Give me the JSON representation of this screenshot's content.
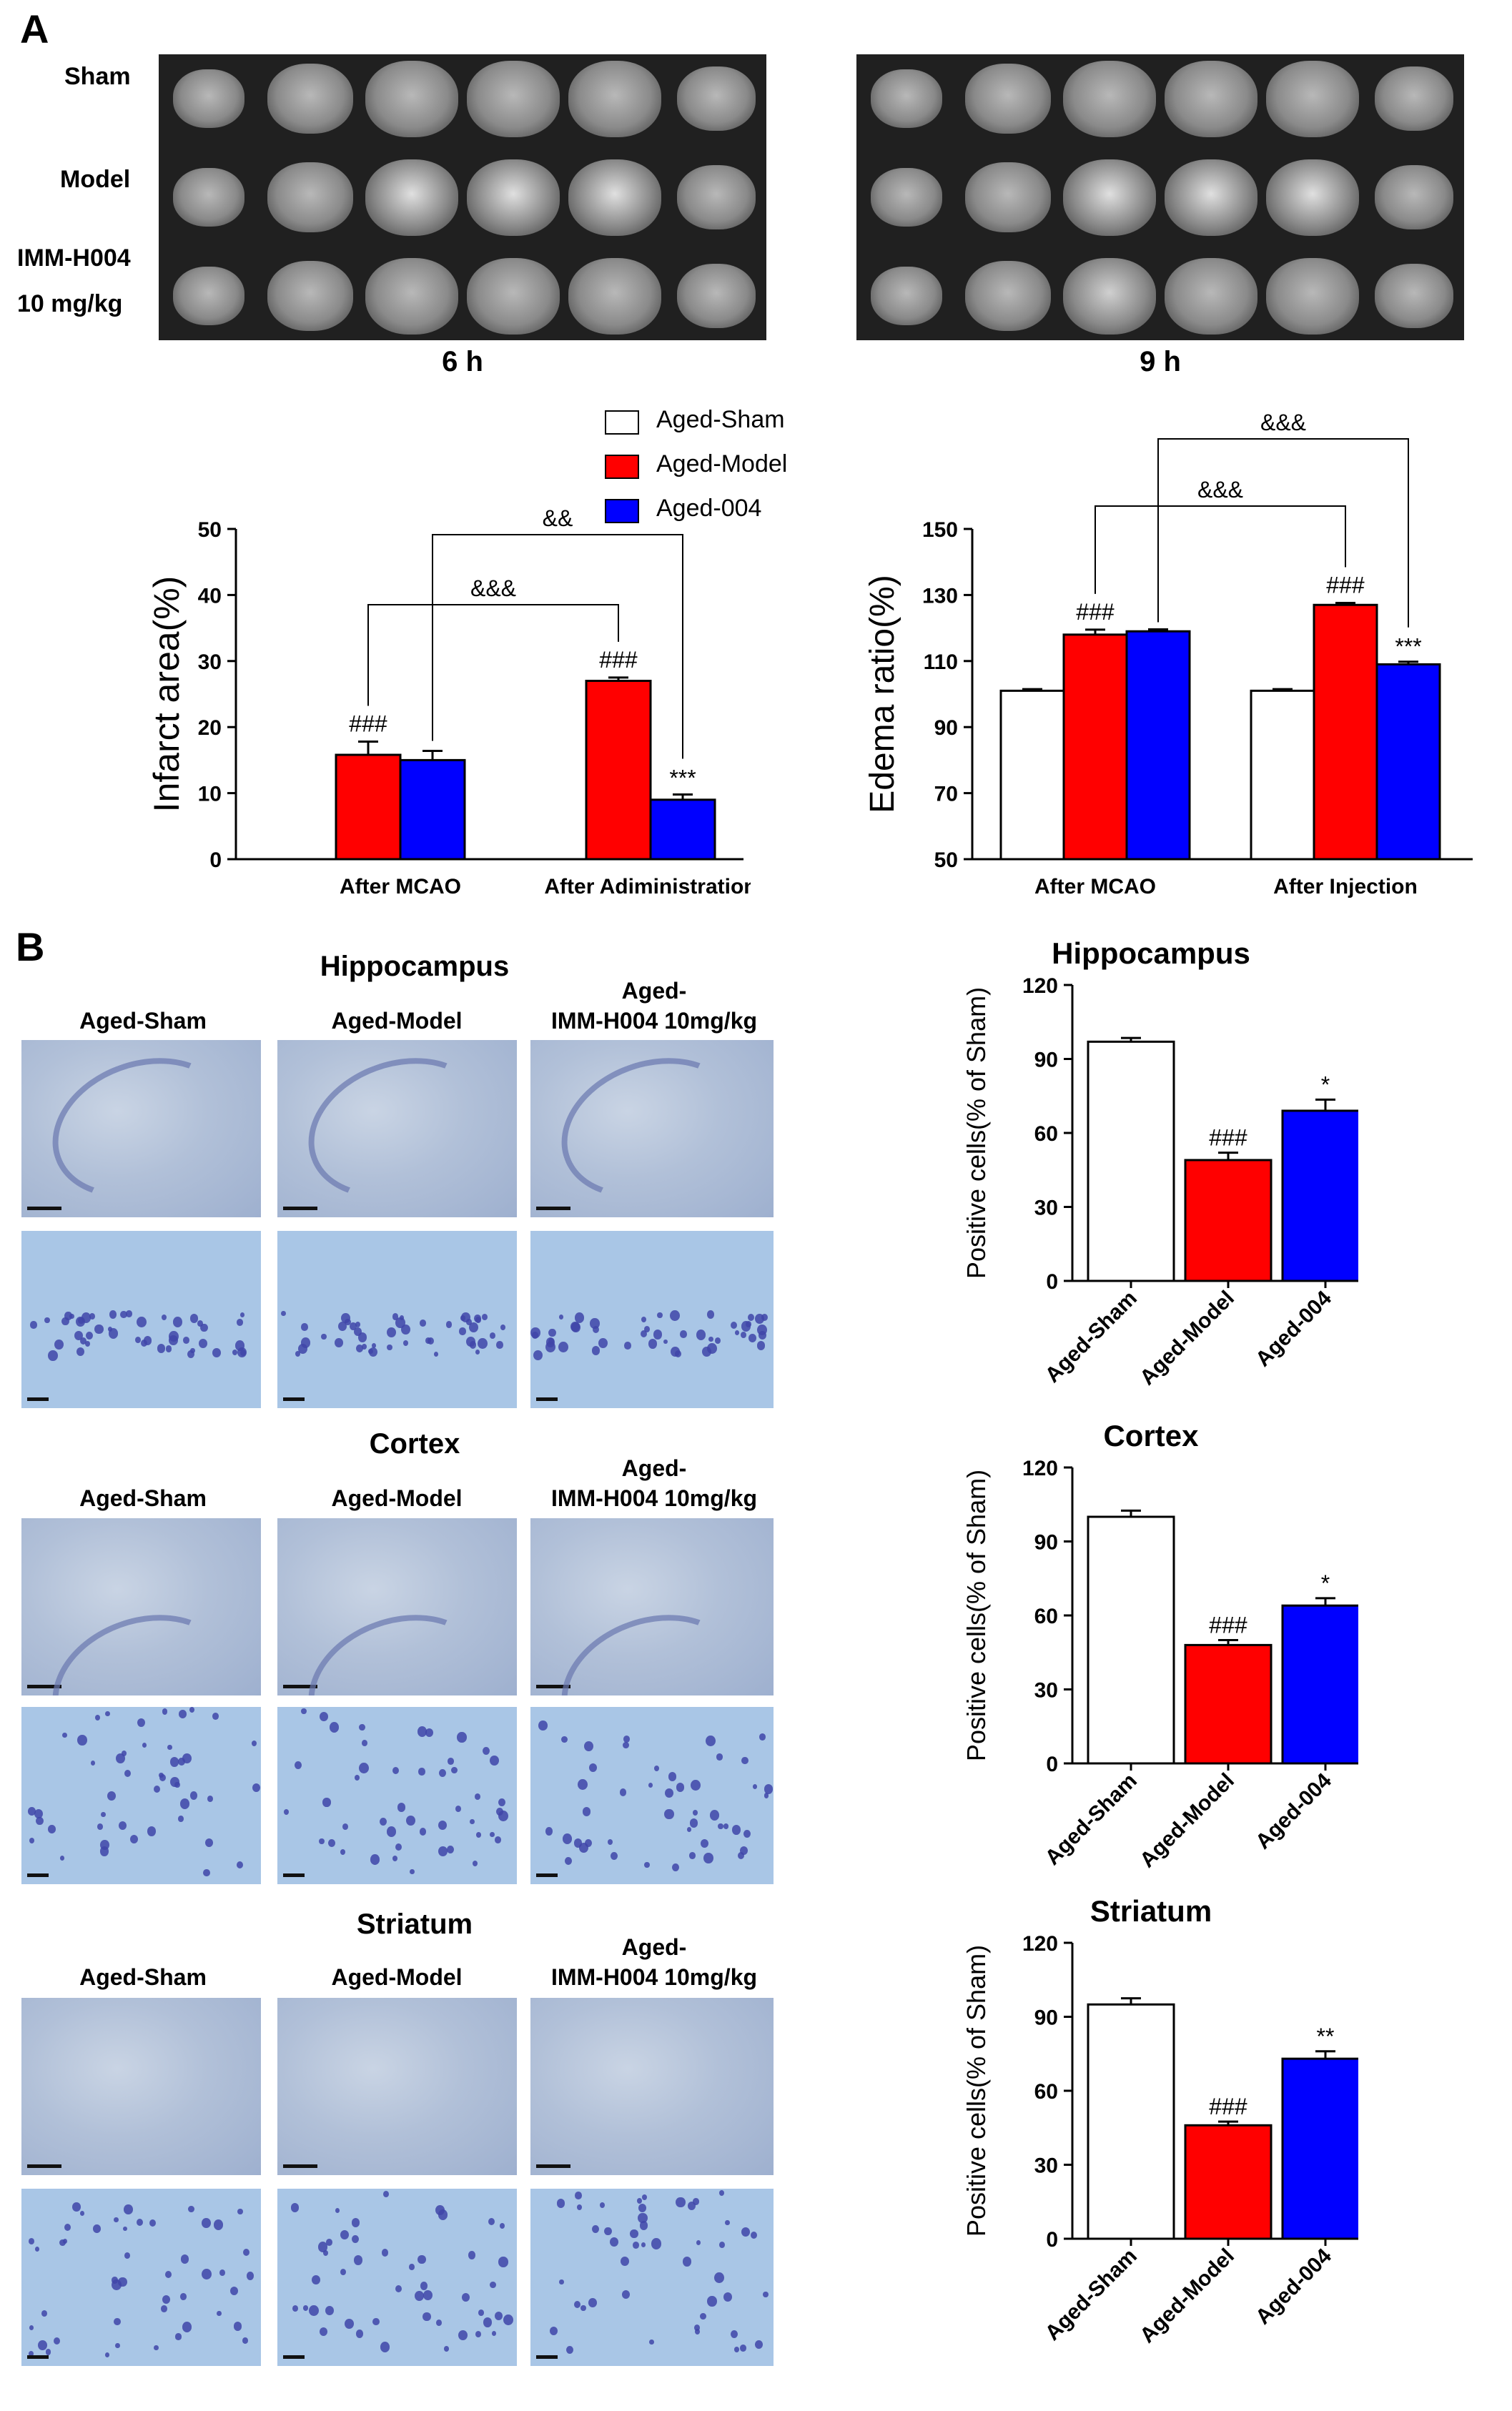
{
  "panel_a": {
    "letter": "A",
    "mri_rows": [
      "Sham",
      "Model",
      "IMM-H004",
      "10 mg/kg"
    ],
    "mri_time_left": "6 h",
    "mri_time_right": "9 h"
  },
  "legend": {
    "entries": [
      {
        "name": "Aged-Sham",
        "color": "#ffffff"
      },
      {
        "name": "Aged-Model",
        "color": "#ff0000"
      },
      {
        "name": "Aged-004",
        "color": "#0000ff"
      }
    ]
  },
  "panel_b": {
    "letter": "B",
    "regions": [
      {
        "title": "Hippocampus",
        "col_labels": [
          "Aged-Sham",
          "Aged-Model",
          "Aged-",
          "IMM-H004 10mg/kg"
        ]
      },
      {
        "title": "Cortex",
        "col_labels": [
          "Aged-Sham",
          "Aged-Model",
          "Aged-",
          "IMM-H004 10mg/kg"
        ]
      },
      {
        "title": "Striatum",
        "col_labels": [
          "Aged-Sham",
          "Aged-Model",
          "Aged-",
          "IMM-H004 10mg/kg"
        ]
      }
    ]
  },
  "chart_data": [
    {
      "type": "bar",
      "ylabel": "Infarct area(%)",
      "categories": [
        "After MCAO",
        "After Adiministration"
      ],
      "series": [
        {
          "name": "Aged-Model",
          "values": [
            15.8,
            27.0
          ],
          "errors": [
            2.0,
            0.5
          ]
        },
        {
          "name": "Aged-004",
          "values": [
            15.0,
            9.0
          ],
          "errors": [
            1.4,
            0.8
          ]
        }
      ],
      "ylim": [
        0,
        50
      ],
      "yticks": [
        "0",
        "10",
        "20",
        "30",
        "40",
        "50"
      ],
      "marks": [
        "###",
        "###",
        "***"
      ],
      "brackets": [
        "&&&",
        "&&"
      ]
    },
    {
      "type": "bar",
      "ylabel": "Edema ratio(%)",
      "categories": [
        "After MCAO",
        "After Injection"
      ],
      "series": [
        {
          "name": "Aged-Sham",
          "values": [
            101,
            101
          ],
          "errors": [
            0.5,
            0.5
          ]
        },
        {
          "name": "Aged-Model",
          "values": [
            118,
            127
          ],
          "errors": [
            1.5,
            0.6
          ]
        },
        {
          "name": "Aged-004",
          "values": [
            119,
            109
          ],
          "errors": [
            0.6,
            0.8
          ]
        }
      ],
      "ylim": [
        50,
        150
      ],
      "yticks": [
        "50",
        "70",
        "90",
        "110",
        "130",
        "150"
      ],
      "marks": [
        "###",
        "###",
        "***"
      ],
      "brackets": [
        "&&&",
        "&&&"
      ]
    },
    {
      "type": "bar",
      "title": "Hippocampus",
      "ylabel": "Positive cells(% of Sham)",
      "categories": [
        "Aged-Sham",
        "Aged-Model",
        "Aged-004"
      ],
      "values": [
        97,
        49,
        69
      ],
      "errors": [
        1.5,
        3.0,
        4.5
      ],
      "ylim": [
        0,
        120
      ],
      "yticks": [
        "0",
        "30",
        "60",
        "90",
        "120"
      ],
      "marks": [
        "",
        "###",
        "*"
      ]
    },
    {
      "type": "bar",
      "title": "Cortex",
      "ylabel": "Positive cells(% of Sham)",
      "categories": [
        "Aged-Sham",
        "Aged-Model",
        "Aged-004"
      ],
      "values": [
        100,
        48,
        64
      ],
      "errors": [
        2.5,
        2.0,
        3.0
      ],
      "ylim": [
        0,
        120
      ],
      "yticks": [
        "0",
        "30",
        "60",
        "90",
        "120"
      ],
      "marks": [
        "",
        "###",
        "*"
      ]
    },
    {
      "type": "bar",
      "title": "Striatum",
      "ylabel": "Positive cells(% of Sham)",
      "categories": [
        "Aged-Sham",
        "Aged-Model",
        "Aged-004"
      ],
      "values": [
        95,
        46,
        73
      ],
      "errors": [
        2.5,
        1.5,
        3.0
      ],
      "ylim": [
        0,
        120
      ],
      "yticks": [
        "0",
        "30",
        "60",
        "90",
        "120"
      ],
      "marks": [
        "",
        "###",
        "**"
      ]
    }
  ]
}
